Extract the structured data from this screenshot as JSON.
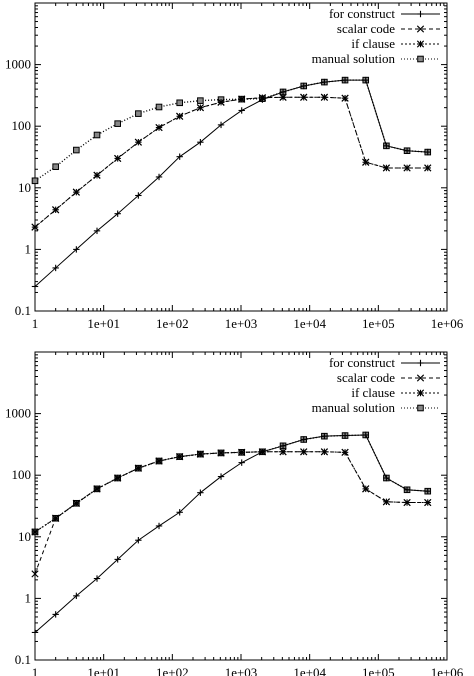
{
  "chart_data": [
    {
      "type": "line",
      "title": "",
      "xlabel": "",
      "ylabel": "",
      "x_scale": "log",
      "y_scale": "log",
      "xlim": [
        1,
        1000000
      ],
      "ylim": [
        0.1,
        10000
      ],
      "xticks": [
        "1",
        "1e+01",
        "1e+02",
        "1e+03",
        "1e+04",
        "1e+05",
        "1e+06"
      ],
      "yticks": [
        "0.1",
        "1",
        "10",
        "100",
        "1000"
      ],
      "grid": false,
      "legend_position": "top-right",
      "x": [
        1,
        2,
        4,
        8,
        16,
        32,
        64,
        128,
        256,
        512,
        1024,
        2048,
        4096,
        8192,
        16384,
        32768,
        65536,
        131072,
        262144,
        524288
      ],
      "series": [
        {
          "name": "for construct",
          "marker": "plus",
          "color": "#000000",
          "values": [
            0.25,
            0.5,
            1.0,
            2.0,
            3.8,
            7.5,
            15,
            32,
            55,
            105,
            180,
            270,
            360,
            450,
            520,
            560,
            560,
            48,
            40,
            38
          ]
        },
        {
          "name": "scalar code",
          "marker": "cross",
          "color": "#000000",
          "values": [
            2.3,
            4.4,
            8.5,
            16,
            30,
            55,
            95,
            145,
            200,
            245,
            275,
            290,
            295,
            295,
            295,
            285,
            26,
            21,
            21,
            21
          ]
        },
        {
          "name": "if clause",
          "marker": "star",
          "color": "#000000",
          "values": [
            2.3,
            4.4,
            8.5,
            16,
            30,
            55,
            95,
            145,
            200,
            245,
            275,
            290,
            295,
            295,
            295,
            285,
            26,
            21,
            21,
            21
          ]
        },
        {
          "name": "manual solution",
          "marker": "square",
          "color": "#000000",
          "values": [
            13,
            22,
            41,
            72,
            110,
            160,
            205,
            240,
            260,
            270,
            275,
            280,
            360,
            450,
            520,
            560,
            560,
            48,
            40,
            38
          ]
        }
      ]
    },
    {
      "type": "line",
      "title": "",
      "xlabel": "",
      "ylabel": "",
      "x_scale": "log",
      "y_scale": "log",
      "xlim": [
        1,
        1000000
      ],
      "ylim": [
        0.1,
        10000
      ],
      "xticks": [
        "1",
        "1e+01",
        "1e+02",
        "1e+03",
        "1e+04",
        "1e+05",
        "1e+06"
      ],
      "yticks": [
        "0.1",
        "1",
        "10",
        "100",
        "1000"
      ],
      "grid": false,
      "legend_position": "top-right",
      "x": [
        1,
        2,
        4,
        8,
        16,
        32,
        64,
        128,
        256,
        512,
        1024,
        2048,
        4096,
        8192,
        16384,
        32768,
        65536,
        131072,
        262144,
        524288
      ],
      "series": [
        {
          "name": "for construct",
          "marker": "plus",
          "color": "#000000",
          "values": [
            0.28,
            0.55,
            1.1,
            2.1,
            4.3,
            8.8,
            15,
            25,
            52,
            95,
            160,
            240,
            300,
            380,
            430,
            440,
            450,
            90,
            58,
            55
          ]
        },
        {
          "name": "scalar code",
          "marker": "cross",
          "color": "#000000",
          "values": [
            2.5,
            20,
            35,
            60,
            90,
            130,
            170,
            200,
            220,
            230,
            235,
            240,
            240,
            240,
            240,
            235,
            60,
            37,
            36,
            36
          ]
        },
        {
          "name": "if clause",
          "marker": "star",
          "color": "#000000",
          "values": [
            12,
            20,
            35,
            60,
            90,
            130,
            170,
            200,
            220,
            230,
            235,
            240,
            240,
            240,
            240,
            235,
            60,
            37,
            36,
            36
          ]
        },
        {
          "name": "manual solution",
          "marker": "square",
          "color": "#000000",
          "values": [
            12,
            20,
            35,
            60,
            90,
            130,
            170,
            200,
            220,
            230,
            235,
            240,
            300,
            380,
            430,
            440,
            450,
            90,
            58,
            55
          ]
        }
      ]
    }
  ]
}
